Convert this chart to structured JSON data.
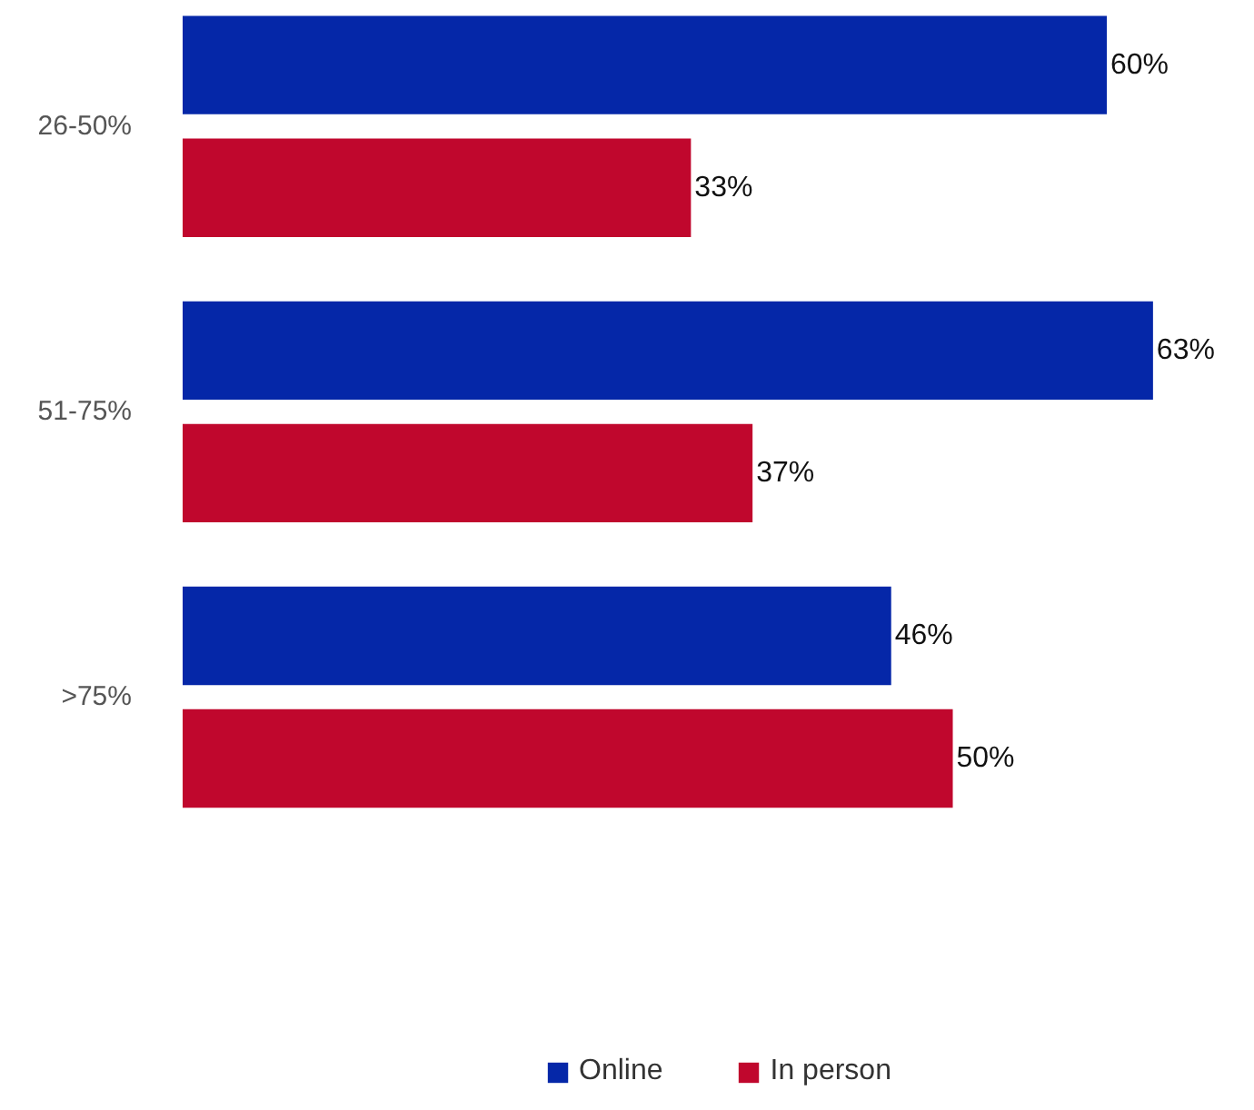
{
  "chart_data": {
    "type": "bar",
    "orientation": "horizontal",
    "categories": [
      "26-50%",
      "51-75%",
      ">75%"
    ],
    "series": [
      {
        "name": "Online",
        "color": "#0527a8",
        "values": [
          60,
          63,
          46
        ],
        "value_labels": [
          "60%",
          "63%",
          "46%"
        ]
      },
      {
        "name": "In person",
        "color": "#c0072d",
        "values": [
          33,
          37,
          50
        ],
        "value_labels": [
          "33%",
          "37%",
          "50%"
        ]
      }
    ],
    "legend": "bottom",
    "grid": false
  }
}
